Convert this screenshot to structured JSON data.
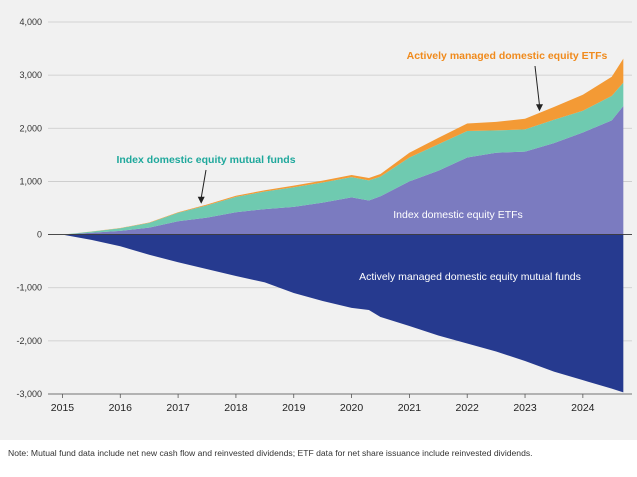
{
  "chart_data": {
    "type": "area",
    "title": "",
    "xlabel": "",
    "ylabel": "",
    "ylim": [
      -3000,
      4000
    ],
    "xlim": [
      2014.75,
      2024.85
    ],
    "y_ticks": [
      {
        "value": 4000,
        "label": "4,000"
      },
      {
        "value": 3000,
        "label": "3,000"
      },
      {
        "value": 2000,
        "label": "2,000"
      },
      {
        "value": 1000,
        "label": "1,000"
      },
      {
        "value": 0,
        "label": "0"
      },
      {
        "value": -1000,
        "label": "-1,000"
      },
      {
        "value": -2000,
        "label": "-2,000"
      },
      {
        "value": -3000,
        "label": "-3,000"
      }
    ],
    "x_ticks": [
      {
        "value": 2015,
        "label": "2015"
      },
      {
        "value": 2016,
        "label": "2016"
      },
      {
        "value": 2017,
        "label": "2017"
      },
      {
        "value": 2018,
        "label": "2018"
      },
      {
        "value": 2019,
        "label": "2019"
      },
      {
        "value": 2020,
        "label": "2020"
      },
      {
        "value": 2021,
        "label": "2021"
      },
      {
        "value": 2022,
        "label": "2022"
      },
      {
        "value": 2023,
        "label": "2023"
      },
      {
        "value": 2024,
        "label": "2024"
      }
    ],
    "x": [
      2015.0,
      2015.5,
      2016.0,
      2016.5,
      2017.0,
      2017.5,
      2018.0,
      2018.5,
      2019.0,
      2019.5,
      2020.0,
      2020.3,
      2020.5,
      2021.0,
      2021.5,
      2022.0,
      2022.5,
      2023.0,
      2023.5,
      2024.0,
      2024.5,
      2024.7
    ],
    "series": [
      {
        "name": "Index domestic equity ETFs",
        "color": "#7b7bc0",
        "values": [
          0,
          35,
          70,
          130,
          250,
          320,
          420,
          480,
          520,
          600,
          700,
          640,
          720,
          1000,
          1200,
          1450,
          1540,
          1560,
          1720,
          1920,
          2150,
          2420
        ]
      },
      {
        "name": "Index domestic equity mutual funds",
        "color": "#6fcab0",
        "values": [
          0,
          20,
          50,
          90,
          160,
          230,
          290,
          330,
          370,
          380,
          380,
          380,
          370,
          450,
          500,
          500,
          420,
          420,
          440,
          410,
          460,
          440
        ]
      },
      {
        "name": "Actively managed domestic equity ETFs",
        "color": "#f39a35",
        "values": [
          0,
          2,
          4,
          6,
          10,
          15,
          20,
          25,
          30,
          35,
          40,
          45,
          50,
          90,
          120,
          140,
          160,
          200,
          240,
          300,
          360,
          450
        ]
      },
      {
        "name": "Actively managed domestic equity mutual funds",
        "color": "#263a8f",
        "values": [
          0,
          -100,
          -220,
          -380,
          -520,
          -650,
          -780,
          -900,
          -1100,
          -1250,
          -1380,
          -1420,
          -1550,
          -1720,
          -1900,
          -2050,
          -2200,
          -2380,
          -2580,
          -2740,
          -2900,
          -2970
        ]
      }
    ],
    "annotations": [
      {
        "text": "Actively managed domestic equity ETFs",
        "color": "#f08a1c",
        "arrow_to": [
          2023.25,
          2320
        ]
      },
      {
        "text": "Index domestic equity mutual funds",
        "color": "#1fa89c",
        "arrow_to": [
          2017.4,
          580
        ]
      },
      {
        "text": "Index domestic equity ETFs",
        "color": "#ffffff"
      },
      {
        "text": "Actively managed domestic equity mutual funds",
        "color": "#ffffff"
      }
    ],
    "note": "Note: Mutual fund data include net new cash flow and reinvested dividends; ETF data for net share issuance include reinvested dividends."
  }
}
